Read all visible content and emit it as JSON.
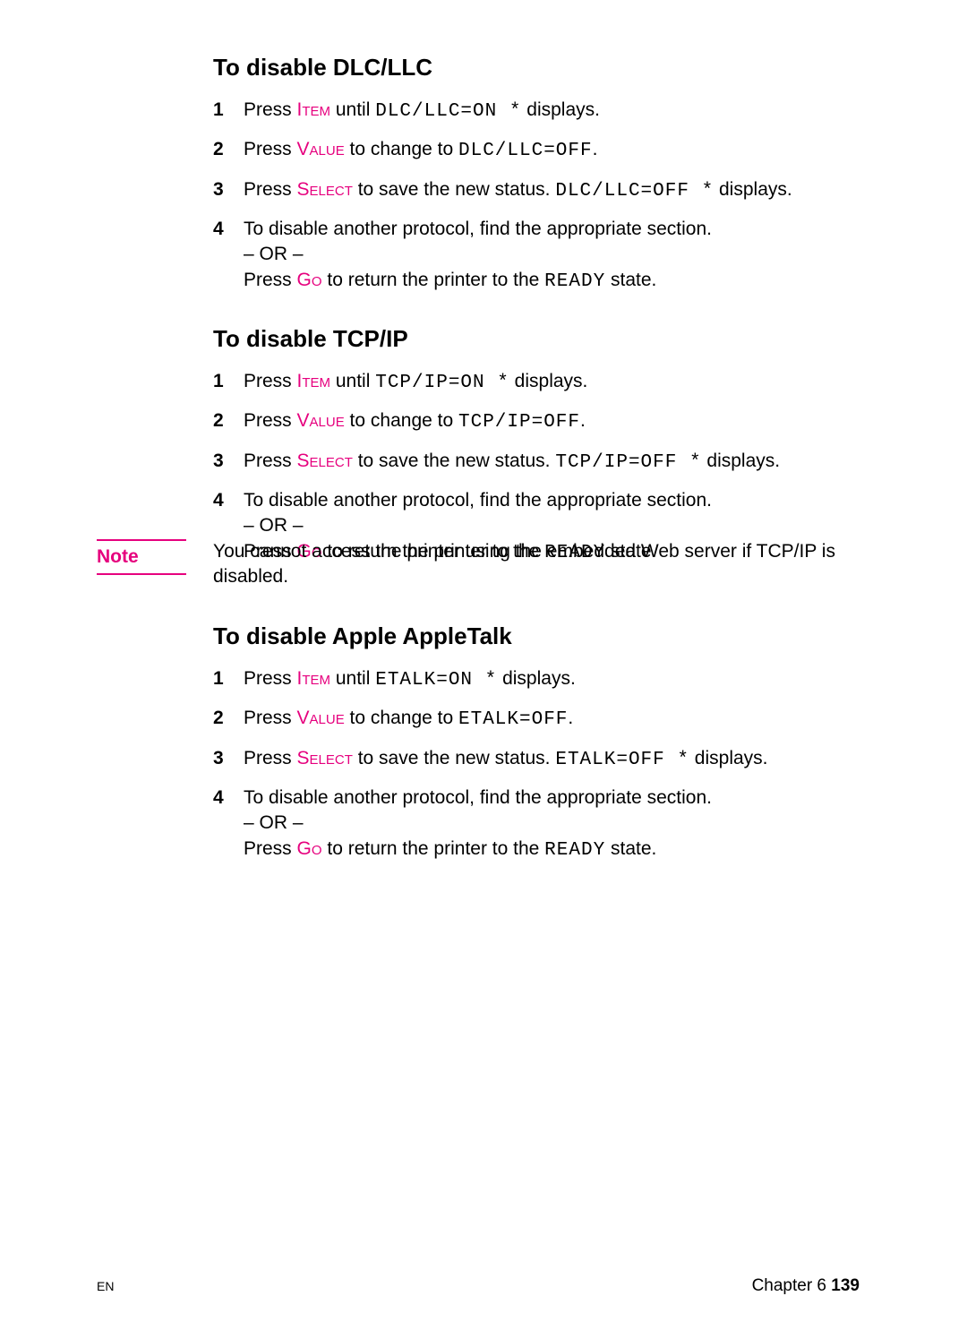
{
  "colors": {
    "accent": "#e6007e",
    "text": "#000000",
    "bg": "#ffffff"
  },
  "sections": {
    "dlc": {
      "heading": "To disable DLC/LLC",
      "step1_a": "Press ",
      "step1_key": "Item",
      "step1_b": " until ",
      "step1_lcd": "DLC/LLC=ON *",
      "step1_c": " displays.",
      "step2_a": "Press ",
      "step2_key": "Value",
      "step2_b": " to change to ",
      "step2_lcd": "DLC/LLC=OFF",
      "step2_c": ".",
      "step3_a": "Press ",
      "step3_key": "Select",
      "step3_b": " to save the new status. ",
      "step3_lcd": "DLC/LLC=OFF *",
      "step3_c": " displays.",
      "step4_a": "To disable another protocol, find the appropriate section.",
      "step4_or": "– OR –",
      "step4_b1": "Press ",
      "step4_key": "Go",
      "step4_b2": " to return the printer to the ",
      "step4_lcd": "READY",
      "step4_b3": " state."
    },
    "tcp": {
      "heading": "To disable TCP/IP",
      "step1_a": "Press ",
      "step1_key": "Item",
      "step1_b": " until ",
      "step1_lcd": "TCP/IP=ON *",
      "step1_c": " displays.",
      "step2_a": "Press ",
      "step2_key": "Value",
      "step2_b": " to change to ",
      "step2_lcd": "TCP/IP=OFF",
      "step2_c": ".",
      "step3_a": "Press ",
      "step3_key": "Select",
      "step3_b": " to save the new status. ",
      "step3_lcd": "TCP/IP=OFF *",
      "step3_c": " displays.",
      "step4_a": "To disable another protocol, find the appropriate section.",
      "step4_or": "– OR –",
      "step4_b1": "Press ",
      "step4_key": "Go",
      "step4_b2": " to return the printer to the ",
      "step4_lcd": "READY",
      "step4_b3": " state."
    },
    "etalk": {
      "heading": "To disable Apple AppleTalk",
      "step1_a": "Press ",
      "step1_key": "Item",
      "step1_b": " until ",
      "step1_lcd": "ETALK=ON *",
      "step1_c": " displays.",
      "step2_a": "Press ",
      "step2_key": "Value",
      "step2_b": " to change to ",
      "step2_lcd": "ETALK=OFF",
      "step2_c": ".",
      "step3_a": "Press ",
      "step3_key": "Select",
      "step3_b": " to save the new status. ",
      "step3_lcd": "ETALK=OFF *",
      "step3_c": " displays.",
      "step4_a": "To disable another protocol, find the appropriate section.",
      "step4_or": "– OR –",
      "step4_b1": "Press ",
      "step4_key": "Go",
      "step4_b2": " to return the printer to the ",
      "step4_lcd": "READY",
      "step4_b3": " state."
    }
  },
  "note": {
    "label": "Note",
    "text": "You cannot access the printer using the embedded Web server if TCP/IP is disabled."
  },
  "step_numbers": {
    "n1": "1",
    "n2": "2",
    "n3": "3",
    "n4": "4"
  },
  "footer": {
    "left": "EN",
    "right_label": "Chapter 6   ",
    "right_page": "139"
  }
}
